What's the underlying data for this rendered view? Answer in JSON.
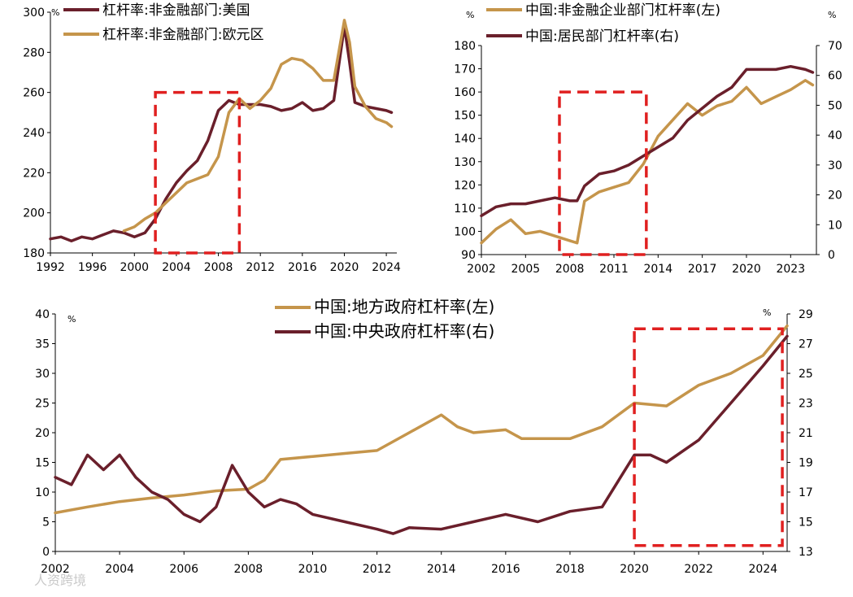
{
  "colors": {
    "gold": "#C5954B",
    "maroon": "#6A1F2B",
    "box": "#E02020"
  },
  "watermark": "人资跨境",
  "chart_data": [
    {
      "type": "line",
      "id": "c1",
      "title": "",
      "unit": "%",
      "xlim": [
        1992,
        2025
      ],
      "ylim": [
        180,
        300
      ],
      "xticks": [
        "1992",
        "1996",
        "2000",
        "2004",
        "2008",
        "2012",
        "2016",
        "2020",
        "2024"
      ],
      "yticks": [
        "180",
        "200",
        "220",
        "240",
        "260",
        "280",
        "300"
      ],
      "highlight_box": {
        "x": [
          2002,
          2010
        ],
        "y": [
          180,
          260
        ]
      },
      "series": [
        {
          "name": "杠杆率:非金融部门:美国",
          "color": "maroon",
          "x": [
            1992,
            1993,
            1994,
            1995,
            1996,
            1997,
            1998,
            1999,
            2000,
            2001,
            2002,
            2003,
            2004,
            2005,
            2006,
            2007,
            2008,
            2009,
            2010,
            2011,
            2012,
            2013,
            2014,
            2015,
            2016,
            2017,
            2018,
            2019,
            2020,
            2020.5,
            2021,
            2022,
            2023,
            2024,
            2024.5
          ],
          "y": [
            187,
            188,
            186,
            188,
            187,
            189,
            191,
            190,
            188,
            190,
            197,
            207,
            215,
            221,
            226,
            236,
            251,
            256,
            254,
            254,
            254,
            253,
            251,
            252,
            255,
            251,
            252,
            256,
            293,
            275,
            255,
            253,
            252,
            251,
            250
          ]
        },
        {
          "name": "杠杆率:非金融部门:欧元区",
          "color": "gold",
          "x": [
            1999,
            2000,
            2001,
            2002,
            2003,
            2004,
            2005,
            2006,
            2007,
            2008,
            2009,
            2010,
            2011,
            2012,
            2013,
            2014,
            2015,
            2016,
            2017,
            2018,
            2019,
            2020,
            2020.5,
            2021,
            2022,
            2023,
            2024,
            2024.5
          ],
          "y": [
            191,
            193,
            197,
            200,
            205,
            210,
            215,
            217,
            219,
            228,
            250,
            257,
            252,
            256,
            262,
            274,
            277,
            276,
            272,
            266,
            266,
            296,
            285,
            263,
            253,
            247,
            245,
            243
          ]
        }
      ]
    },
    {
      "type": "line",
      "id": "c2",
      "unit": "%",
      "xlim": [
        2002,
        2024.75
      ],
      "ylim_left": [
        90,
        180
      ],
      "ylim_right": [
        0,
        70
      ],
      "xticks": [
        "2002",
        "2005",
        "2008",
        "2011",
        "2014",
        "2017",
        "2020",
        "2023"
      ],
      "yticks_left": [
        "90",
        "100",
        "110",
        "120",
        "130",
        "140",
        "150",
        "160",
        "170",
        "180"
      ],
      "yticks_right": [
        "0",
        "10",
        "20",
        "30",
        "40",
        "50",
        "60",
        "70"
      ],
      "highlight_box": {
        "x": [
          2007.3,
          2013.2
        ],
        "y_left": [
          90,
          160
        ]
      },
      "series": [
        {
          "name": "中国:非金融企业部门杠杆率(左)",
          "color": "gold",
          "axis": "left",
          "x": [
            2002,
            2003,
            2004,
            2005,
            2006,
            2007,
            2008,
            2008.5,
            2009,
            2010,
            2011,
            2012,
            2013,
            2014,
            2015,
            2016,
            2017,
            2018,
            2019,
            2020,
            2021,
            2022,
            2023,
            2024,
            2024.5
          ],
          "y": [
            95,
            101,
            105,
            99,
            100,
            98,
            96,
            95,
            113,
            117,
            119,
            121,
            129,
            141,
            148,
            155,
            150,
            154,
            156,
            162,
            155,
            158,
            161,
            165,
            163
          ]
        },
        {
          "name": "中国:居民部门杠杆率(右)",
          "color": "maroon",
          "axis": "right",
          "x": [
            2002,
            2003,
            2004,
            2005,
            2006,
            2007,
            2008,
            2008.5,
            2009,
            2010,
            2011,
            2012,
            2013,
            2014,
            2015,
            2016,
            2017,
            2018,
            2019,
            2020,
            2021,
            2022,
            2023,
            2024,
            2024.5
          ],
          "y": [
            13,
            16,
            17,
            17,
            18,
            19,
            18,
            18,
            23,
            27,
            28,
            30,
            33,
            36,
            39,
            45,
            49,
            53,
            56,
            62,
            62,
            62,
            63,
            62,
            61
          ]
        }
      ]
    },
    {
      "type": "line",
      "id": "c3",
      "unit": "%",
      "xlim": [
        2002,
        2024.75
      ],
      "ylim_left": [
        0,
        40
      ],
      "ylim_right": [
        13,
        29
      ],
      "xticks": [
        "2002",
        "2004",
        "2006",
        "2008",
        "2010",
        "2012",
        "2014",
        "2016",
        "2018",
        "2020",
        "2022",
        "2024"
      ],
      "yticks_left": [
        "0",
        "5",
        "10",
        "15",
        "20",
        "25",
        "30",
        "35",
        "40"
      ],
      "yticks_right": [
        "13",
        "15",
        "17",
        "19",
        "21",
        "23",
        "25",
        "27",
        "29"
      ],
      "highlight_box": {
        "x": [
          2020,
          2024.6
        ],
        "y_left": [
          1,
          37.5
        ]
      },
      "series": [
        {
          "name": "中国:地方政府杠杆率(左)",
          "color": "gold",
          "axis": "left",
          "x": [
            2002,
            2003,
            2004,
            2005,
            2006,
            2007,
            2008,
            2008.5,
            2009,
            2010,
            2011,
            2012,
            2013,
            2014,
            2014.5,
            2015,
            2016,
            2016.5,
            2017,
            2018,
            2019,
            2020,
            2021,
            2022,
            2023,
            2024,
            2024.75
          ],
          "y": [
            6.5,
            7.5,
            8.4,
            9,
            9.5,
            10.2,
            10.5,
            12,
            15.5,
            16,
            16.5,
            17,
            20,
            23,
            21,
            20,
            20.5,
            19,
            19,
            19,
            21,
            25,
            24.5,
            28,
            30,
            33,
            38
          ]
        },
        {
          "name": "中国:中央政府杠杆率(右)",
          "color": "maroon",
          "axis": "right",
          "x": [
            2002,
            2002.5,
            2003,
            2003.5,
            2004,
            2004.5,
            2005,
            2005.5,
            2006,
            2006.5,
            2007,
            2007.5,
            2008,
            2008.5,
            2009,
            2009.5,
            2010,
            2011,
            2012,
            2012.5,
            2013,
            2014,
            2015,
            2016,
            2017,
            2018,
            2019,
            2020,
            2020.5,
            2021,
            2022,
            2023,
            2024,
            2024.75
          ],
          "y": [
            18,
            17.5,
            19.5,
            18.5,
            19.5,
            18,
            17,
            16.5,
            15.5,
            15,
            16,
            18.8,
            17,
            16,
            16.5,
            16.2,
            15.5,
            15,
            14.5,
            14.2,
            14.6,
            14.5,
            15,
            15.5,
            15,
            15.7,
            16,
            19.5,
            19.5,
            19,
            20.5,
            23,
            25.5,
            27.5
          ]
        }
      ]
    }
  ]
}
